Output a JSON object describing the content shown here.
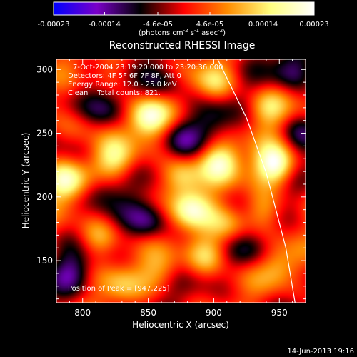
{
  "chart_data": {
    "type": "heatmap",
    "title": "Reconstructed RHESSI Image",
    "xlabel": "Heliocentric X (arcsec)",
    "ylabel": "Heliocentric Y (arcsec)",
    "xlim": [
      780,
      970
    ],
    "ylim": [
      117,
      308
    ],
    "x_ticks": [
      800,
      850,
      900,
      950
    ],
    "y_ticks": [
      150,
      200,
      250,
      300
    ],
    "colorbar": {
      "label_parts": [
        "(photons cm",
        "-2",
        " s",
        "-1",
        " asec",
        "-2",
        ")"
      ],
      "range": [
        -0.00023,
        0.00023
      ],
      "tick_values": [
        -0.00023,
        -0.00014,
        -4.6e-05,
        4.6e-05,
        0.00014,
        0.00023
      ],
      "tick_labels": [
        "-0.00023",
        "-0.00014",
        "-4.6e-05",
        "4.6e-05",
        "0.00014",
        "0.00023"
      ],
      "colormap": [
        "#0000ff",
        "#7a00c8",
        "#000000",
        "#ff0000",
        "#ff8c00",
        "#ffff80",
        "#ffffff"
      ]
    },
    "annotations": [
      "7-Oct-2004 23:19:20.000 to 23:20:36.000",
      "Detectors: 4F 5F 6F 7F 8F, Att 0",
      "Energy Range: 12.0 - 25.0 keV",
      "Clean    Total counts: 821.",
      "Position of Peak = [947,225]"
    ],
    "peak": {
      "x": 947,
      "y": 225
    },
    "limb": [
      [
        903,
        308
      ],
      [
        925,
        262
      ],
      [
        940,
        219
      ],
      [
        955,
        160
      ],
      [
        962,
        117
      ]
    ],
    "sources": [
      {
        "x": 850,
        "y": 262,
        "v": 0.00019
      },
      {
        "x": 825,
        "y": 230,
        "v": 0.00013
      },
      {
        "x": 787,
        "y": 212,
        "v": 0.00018
      },
      {
        "x": 875,
        "y": 216,
        "v": 0.00016
      },
      {
        "x": 905,
        "y": 228,
        "v": 0.00017
      },
      {
        "x": 947,
        "y": 225,
        "v": 0.00023
      },
      {
        "x": 940,
        "y": 270,
        "v": 0.00012
      },
      {
        "x": 900,
        "y": 290,
        "v": 0.00011
      },
      {
        "x": 882,
        "y": 190,
        "v": 0.00015
      },
      {
        "x": 910,
        "y": 178,
        "v": 0.00012
      },
      {
        "x": 895,
        "y": 155,
        "v": 0.00014
      },
      {
        "x": 938,
        "y": 190,
        "v": 0.00011
      },
      {
        "x": 950,
        "y": 145,
        "v": 9e-05
      },
      {
        "x": 812,
        "y": 168,
        "v": 0.00011
      },
      {
        "x": 860,
        "y": 142,
        "v": 9e-05
      },
      {
        "x": 830,
        "y": 130,
        "v": 8e-05
      },
      {
        "x": 795,
        "y": 255,
        "v": 7e-05
      },
      {
        "x": 820,
        "y": 298,
        "v": 7e-05
      },
      {
        "x": 815,
        "y": 205,
        "v": -9e-05
      },
      {
        "x": 850,
        "y": 180,
        "v": -0.00012
      },
      {
        "x": 820,
        "y": 270,
        "v": -8e-05
      },
      {
        "x": 875,
        "y": 245,
        "v": -8e-05
      },
      {
        "x": 862,
        "y": 290,
        "v": -0.0001
      },
      {
        "x": 960,
        "y": 300,
        "v": -0.0001
      },
      {
        "x": 965,
        "y": 250,
        "v": -9e-05
      },
      {
        "x": 930,
        "y": 160,
        "v": -8e-05
      },
      {
        "x": 792,
        "y": 140,
        "v": -0.0001
      },
      {
        "x": 900,
        "y": 260,
        "v": -7e-05
      }
    ]
  },
  "footer": {
    "timestamp": "14-Jun-2013 19:16"
  }
}
